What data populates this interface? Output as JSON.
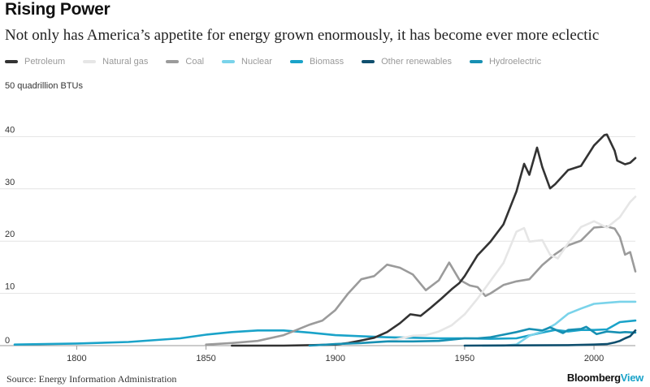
{
  "header": {
    "title": "Rising Power",
    "subtitle": "Not only has America’s appetite for energy grown enormously, it has become ever more eclectic"
  },
  "footer": {
    "source": "Source: Energy Information Administration",
    "brand_part1": "Bloomberg",
    "brand_part2": "View"
  },
  "chart_data": {
    "type": "line",
    "unit_label": "50 quadrillion BTUs",
    "xlim": [
      1776,
      2016
    ],
    "ylim": [
      0,
      50
    ],
    "x_ticks": [
      1800,
      1850,
      1900,
      1950,
      2000
    ],
    "y_ticks": [
      10,
      20,
      30,
      40
    ],
    "y_zero_label": "0",
    "grid": true,
    "legend_position": "top",
    "series": [
      {
        "name": "Biomass",
        "color": "#1aa3c9",
        "points": [
          [
            1776,
            0.2
          ],
          [
            1800,
            0.4
          ],
          [
            1820,
            0.7
          ],
          [
            1840,
            1.4
          ],
          [
            1850,
            2.1
          ],
          [
            1860,
            2.6
          ],
          [
            1870,
            2.9
          ],
          [
            1880,
            2.9
          ],
          [
            1890,
            2.5
          ],
          [
            1900,
            2.0
          ],
          [
            1910,
            1.8
          ],
          [
            1920,
            1.6
          ],
          [
            1930,
            1.5
          ],
          [
            1940,
            1.4
          ],
          [
            1950,
            1.4
          ],
          [
            1960,
            1.3
          ],
          [
            1970,
            1.4
          ],
          [
            1980,
            2.5
          ],
          [
            1985,
            3.0
          ],
          [
            1990,
            2.7
          ],
          [
            1995,
            3.0
          ],
          [
            2000,
            3.0
          ],
          [
            2005,
            3.1
          ],
          [
            2010,
            4.5
          ],
          [
            2016,
            4.8
          ]
        ]
      },
      {
        "name": "Coal",
        "color": "#9b9b9b",
        "points": [
          [
            1850,
            0.2
          ],
          [
            1860,
            0.5
          ],
          [
            1870,
            0.9
          ],
          [
            1880,
            2.0
          ],
          [
            1885,
            3.0
          ],
          [
            1890,
            4.0
          ],
          [
            1895,
            4.8
          ],
          [
            1900,
            6.8
          ],
          [
            1905,
            10.0
          ],
          [
            1910,
            12.7
          ],
          [
            1915,
            13.3
          ],
          [
            1920,
            15.5
          ],
          [
            1925,
            14.9
          ],
          [
            1930,
            13.6
          ],
          [
            1935,
            10.6
          ],
          [
            1940,
            12.5
          ],
          [
            1944,
            15.9
          ],
          [
            1948,
            12.6
          ],
          [
            1952,
            11.5
          ],
          [
            1955,
            11.2
          ],
          [
            1958,
            9.5
          ],
          [
            1960,
            10.0
          ],
          [
            1965,
            11.6
          ],
          [
            1970,
            12.3
          ],
          [
            1975,
            12.7
          ],
          [
            1980,
            15.4
          ],
          [
            1985,
            17.5
          ],
          [
            1990,
            19.2
          ],
          [
            1995,
            20.1
          ],
          [
            2000,
            22.6
          ],
          [
            2005,
            22.8
          ],
          [
            2008,
            22.4
          ],
          [
            2010,
            20.8
          ],
          [
            2012,
            17.4
          ],
          [
            2014,
            17.9
          ],
          [
            2016,
            14.2
          ]
        ]
      },
      {
        "name": "Natural gas",
        "color": "#e6e6e6",
        "points": [
          [
            1900,
            0.3
          ],
          [
            1910,
            0.5
          ],
          [
            1920,
            0.8
          ],
          [
            1930,
            1.9
          ],
          [
            1935,
            2.0
          ],
          [
            1940,
            2.7
          ],
          [
            1945,
            3.9
          ],
          [
            1950,
            6.0
          ],
          [
            1955,
            9.0
          ],
          [
            1960,
            12.4
          ],
          [
            1965,
            15.8
          ],
          [
            1970,
            21.8
          ],
          [
            1973,
            22.5
          ],
          [
            1975,
            19.9
          ],
          [
            1980,
            20.2
          ],
          [
            1983,
            17.4
          ],
          [
            1986,
            16.7
          ],
          [
            1990,
            19.6
          ],
          [
            1995,
            22.7
          ],
          [
            2000,
            23.8
          ],
          [
            2005,
            22.6
          ],
          [
            2010,
            24.6
          ],
          [
            2014,
            27.5
          ],
          [
            2016,
            28.5
          ]
        ]
      },
      {
        "name": "Petroleum",
        "color": "#333333",
        "points": [
          [
            1860,
            0.0
          ],
          [
            1880,
            0.0
          ],
          [
            1890,
            0.1
          ],
          [
            1900,
            0.2
          ],
          [
            1905,
            0.5
          ],
          [
            1910,
            1.0
          ],
          [
            1915,
            1.5
          ],
          [
            1920,
            2.6
          ],
          [
            1925,
            4.3
          ],
          [
            1929,
            6.0
          ],
          [
            1933,
            5.7
          ],
          [
            1937,
            7.3
          ],
          [
            1941,
            9.0
          ],
          [
            1945,
            10.8
          ],
          [
            1948,
            12.0
          ],
          [
            1950,
            13.3
          ],
          [
            1955,
            17.3
          ],
          [
            1960,
            19.9
          ],
          [
            1965,
            23.2
          ],
          [
            1970,
            29.5
          ],
          [
            1973,
            34.8
          ],
          [
            1975,
            32.7
          ],
          [
            1978,
            37.9
          ],
          [
            1980,
            34.2
          ],
          [
            1983,
            30.1
          ],
          [
            1985,
            30.9
          ],
          [
            1990,
            33.6
          ],
          [
            1995,
            34.4
          ],
          [
            2000,
            38.3
          ],
          [
            2004,
            40.3
          ],
          [
            2005,
            40.4
          ],
          [
            2008,
            37.3
          ],
          [
            2009,
            35.4
          ],
          [
            2012,
            34.7
          ],
          [
            2014,
            35.0
          ],
          [
            2016,
            35.9
          ]
        ]
      },
      {
        "name": "Nuclear",
        "color": "#7ad3ea",
        "points": [
          [
            1957,
            0.0
          ],
          [
            1965,
            0.0
          ],
          [
            1970,
            0.2
          ],
          [
            1975,
            1.9
          ],
          [
            1980,
            2.7
          ],
          [
            1985,
            4.1
          ],
          [
            1990,
            6.1
          ],
          [
            1995,
            7.1
          ],
          [
            2000,
            8.0
          ],
          [
            2005,
            8.2
          ],
          [
            2010,
            8.4
          ],
          [
            2016,
            8.4
          ]
        ]
      },
      {
        "name": "Hydroelectric",
        "color": "#1790b3",
        "points": [
          [
            1890,
            0.0
          ],
          [
            1900,
            0.3
          ],
          [
            1910,
            0.5
          ],
          [
            1920,
            0.8
          ],
          [
            1930,
            0.8
          ],
          [
            1940,
            0.9
          ],
          [
            1950,
            1.4
          ],
          [
            1955,
            1.4
          ],
          [
            1960,
            1.6
          ],
          [
            1965,
            2.1
          ],
          [
            1970,
            2.6
          ],
          [
            1975,
            3.2
          ],
          [
            1980,
            2.9
          ],
          [
            1983,
            3.5
          ],
          [
            1988,
            2.4
          ],
          [
            1990,
            3.0
          ],
          [
            1995,
            3.2
          ],
          [
            1997,
            3.6
          ],
          [
            2001,
            2.2
          ],
          [
            2005,
            2.7
          ],
          [
            2010,
            2.5
          ],
          [
            2012,
            2.6
          ],
          [
            2016,
            2.5
          ]
        ]
      },
      {
        "name": "Other renewables",
        "color": "#0f4f6e",
        "points": [
          [
            1950,
            0.0
          ],
          [
            1990,
            0.1
          ],
          [
            2000,
            0.2
          ],
          [
            2005,
            0.3
          ],
          [
            2008,
            0.6
          ],
          [
            2010,
            0.9
          ],
          [
            2012,
            1.4
          ],
          [
            2014,
            1.8
          ],
          [
            2016,
            2.9
          ]
        ]
      }
    ],
    "legend_order": [
      "Petroleum",
      "Natural gas",
      "Coal",
      "Nuclear",
      "Biomass",
      "Other renewables",
      "Hydroelectric"
    ]
  }
}
